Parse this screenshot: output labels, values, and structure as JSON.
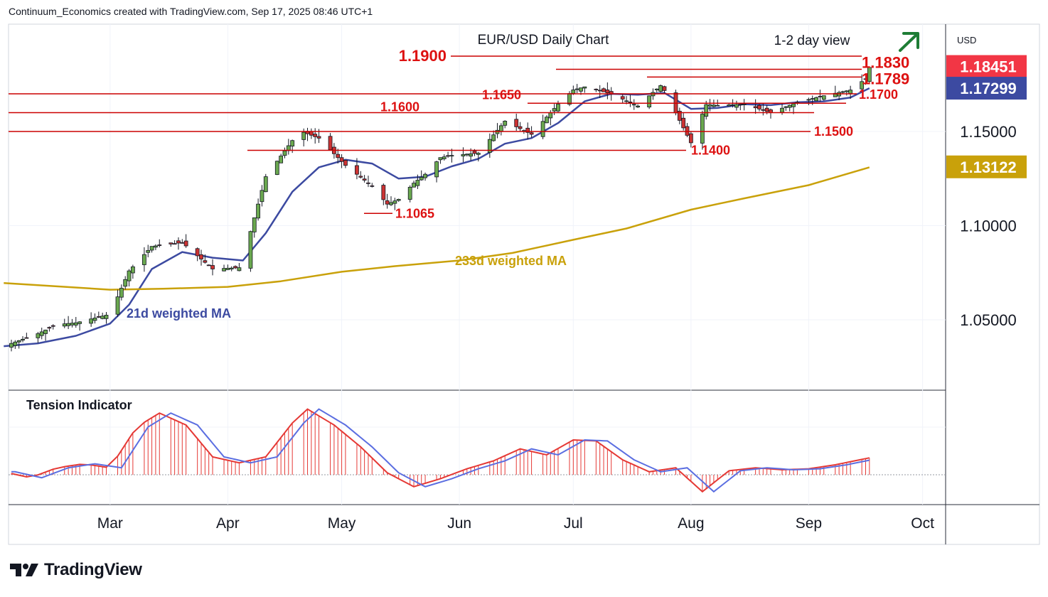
{
  "header": {
    "credit": "Continuum_Economics created with TradingView.com, Sep 17, 2025 08:46 UTC+1"
  },
  "branding": {
    "name": "TradingView",
    "logo_icon": "tradingview-logo-icon"
  },
  "chart_data": {
    "type": "candlestick",
    "title": "EUR/USD Daily Chart",
    "subtitle": "1-2 day view",
    "currency": "USD",
    "view_arrow": "up-right",
    "x_ticks": [
      "Mar",
      "Apr",
      "May",
      "Jun",
      "Jul",
      "Aug",
      "Sep",
      "Oct"
    ],
    "y_ticks": [
      "1.05000",
      "1.10000",
      "1.15000"
    ],
    "y_range": [
      1.02,
      1.205
    ],
    "price_tags": [
      {
        "value": "1.18451",
        "color": "#f23645",
        "kind": "last-price"
      },
      {
        "value": "1.17299",
        "color": "#3c4aa1",
        "kind": "21d-ma"
      },
      {
        "value": "1.13122",
        "color": "#c9a10a",
        "kind": "233d-ma"
      }
    ],
    "levels": [
      {
        "label": "1.1900",
        "value": 1.19
      },
      {
        "label": "1.1830",
        "value": 1.183
      },
      {
        "label": "1.1789",
        "value": 1.1789
      },
      {
        "label": "1.1700",
        "value": 1.17
      },
      {
        "label": "1.1650",
        "value": 1.165
      },
      {
        "label": "1.1600",
        "value": 1.16
      },
      {
        "label": "1.1500",
        "value": 1.15
      },
      {
        "label": "1.1400",
        "value": 1.14
      },
      {
        "label": "1.1065",
        "value": 1.1065
      }
    ],
    "series": [
      {
        "name": "21d weighted MA",
        "color": "#3c4aa1",
        "points": [
          [
            "2025-02-01",
            1.036
          ],
          [
            "2025-02-10",
            1.0375
          ],
          [
            "2025-02-20",
            1.0415
          ],
          [
            "2025-03-01",
            1.048
          ],
          [
            "2025-03-06",
            1.058
          ],
          [
            "2025-03-12",
            1.077
          ],
          [
            "2025-03-20",
            1.086
          ],
          [
            "2025-03-28",
            1.083
          ],
          [
            "2025-04-05",
            1.0815
          ],
          [
            "2025-04-11",
            1.096
          ],
          [
            "2025-04-18",
            1.118
          ],
          [
            "2025-04-25",
            1.131
          ],
          [
            "2025-05-02",
            1.135
          ],
          [
            "2025-05-09",
            1.133
          ],
          [
            "2025-05-16",
            1.125
          ],
          [
            "2025-05-23",
            1.126
          ],
          [
            "2025-05-30",
            1.1315
          ],
          [
            "2025-06-06",
            1.1355
          ],
          [
            "2025-06-13",
            1.1435
          ],
          [
            "2025-06-20",
            1.1465
          ],
          [
            "2025-06-27",
            1.1545
          ],
          [
            "2025-07-04",
            1.166
          ],
          [
            "2025-07-11",
            1.17
          ],
          [
            "2025-07-18",
            1.1695
          ],
          [
            "2025-07-25",
            1.1705
          ],
          [
            "2025-08-01",
            1.162
          ],
          [
            "2025-08-08",
            1.1625
          ],
          [
            "2025-08-15",
            1.1645
          ],
          [
            "2025-08-22",
            1.164
          ],
          [
            "2025-08-29",
            1.1655
          ],
          [
            "2025-09-05",
            1.166
          ],
          [
            "2025-09-12",
            1.168
          ],
          [
            "2025-09-17",
            1.173
          ]
        ]
      },
      {
        "name": "233d weighted MA",
        "color": "#c9a10a",
        "points": [
          [
            "2025-02-01",
            1.0695
          ],
          [
            "2025-03-01",
            1.066
          ],
          [
            "2025-03-15",
            1.0665
          ],
          [
            "2025-04-01",
            1.0675
          ],
          [
            "2025-04-15",
            1.0705
          ],
          [
            "2025-05-01",
            1.0755
          ],
          [
            "2025-05-15",
            1.0785
          ],
          [
            "2025-06-01",
            1.0815
          ],
          [
            "2025-06-15",
            1.0855
          ],
          [
            "2025-07-01",
            1.0925
          ],
          [
            "2025-07-15",
            1.0985
          ],
          [
            "2025-08-01",
            1.1085
          ],
          [
            "2025-08-15",
            1.1145
          ],
          [
            "2025-09-01",
            1.1215
          ],
          [
            "2025-09-17",
            1.131
          ]
        ]
      }
    ],
    "tension_indicator": {
      "title": "Tension Indicator",
      "note": "oscillator values relative to zero line (approx.)",
      "points": [
        [
          "2025-02-01",
          0.03
        ],
        [
          "2025-02-08",
          -0.03
        ],
        [
          "2025-02-15",
          0.07
        ],
        [
          "2025-02-22",
          0.11
        ],
        [
          "2025-03-01",
          0.07
        ],
        [
          "2025-03-08",
          0.48
        ],
        [
          "2025-03-14",
          0.62
        ],
        [
          "2025-03-21",
          0.5
        ],
        [
          "2025-03-28",
          0.18
        ],
        [
          "2025-04-04",
          0.12
        ],
        [
          "2025-04-11",
          0.18
        ],
        [
          "2025-04-18",
          0.52
        ],
        [
          "2025-04-22",
          0.66
        ],
        [
          "2025-04-29",
          0.5
        ],
        [
          "2025-05-06",
          0.28
        ],
        [
          "2025-05-13",
          0.02
        ],
        [
          "2025-05-20",
          -0.12
        ],
        [
          "2025-05-27",
          -0.04
        ],
        [
          "2025-06-03",
          0.06
        ],
        [
          "2025-06-10",
          0.14
        ],
        [
          "2025-06-17",
          0.26
        ],
        [
          "2025-06-24",
          0.2
        ],
        [
          "2025-07-01",
          0.35
        ],
        [
          "2025-07-07",
          0.34
        ],
        [
          "2025-07-14",
          0.15
        ],
        [
          "2025-07-21",
          0.03
        ],
        [
          "2025-07-28",
          0.07
        ],
        [
          "2025-08-04",
          -0.17
        ],
        [
          "2025-08-11",
          0.04
        ],
        [
          "2025-08-18",
          0.07
        ],
        [
          "2025-08-25",
          0.05
        ],
        [
          "2025-09-01",
          0.06
        ],
        [
          "2025-09-08",
          0.1
        ],
        [
          "2025-09-17",
          0.17
        ]
      ]
    },
    "annotations": [
      "21d weighted MA",
      "233d weighted MA"
    ]
  }
}
